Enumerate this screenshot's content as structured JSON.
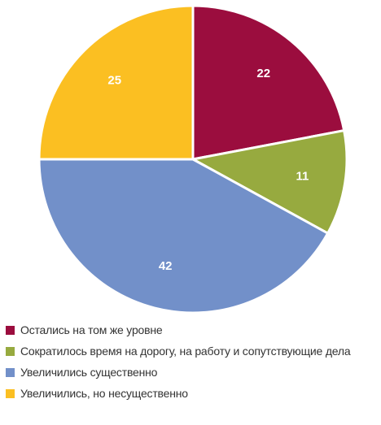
{
  "chart_data": {
    "type": "pie",
    "title": "",
    "slices": [
      {
        "label": "Остались на том же уровне",
        "value": 22,
        "color": "#9b0d3e"
      },
      {
        "label": "Сократилось время на дорогу, на работу и сопутствующие дела",
        "value": 11,
        "color": "#97aa3f"
      },
      {
        "label": "Увеличились существенно",
        "value": 42,
        "color": "#7290c9"
      },
      {
        "label": "Увеличились, но несущественно",
        "value": 25,
        "color": "#fbbf22"
      }
    ],
    "legend_position": "bottom-left",
    "data_labels": true
  }
}
